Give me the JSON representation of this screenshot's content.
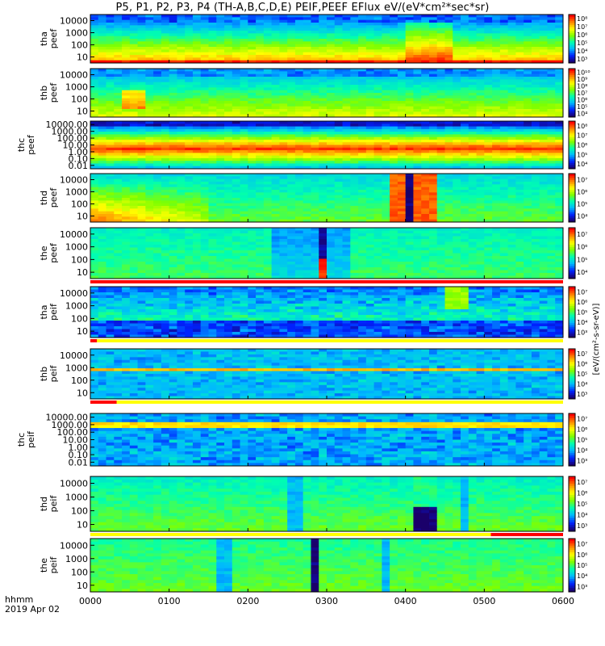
{
  "title": "P5, P1, P2, P3, P4 (TH-A,B,C,D,E) PEIF,PEEF EFlux eV/(eV*cm²*sec*sr)",
  "time_axis": {
    "label": "hhmm",
    "date": "2019 Apr 02",
    "ticks": [
      "0000",
      "0100",
      "0200",
      "0300",
      "0400",
      "0500",
      "0600"
    ]
  },
  "chart_data": {
    "type": "heatmap",
    "title": "P5, P1, P2, P3, P4 (TH-A,B,C,D,E) PEIF,PEEF EFlux eV/(eV*cm²*sec*sr)",
    "xlabel": "hhmm",
    "x_range": [
      "0000",
      "0600"
    ],
    "y_scale": "log",
    "colorbar_label": "[eV/(cm²-s-sr-eV)]",
    "colorbar_scale": "log",
    "panels": [
      {
        "name": "tha peef",
        "probe": "tha",
        "species": "electron",
        "ylabel": [
          "tha",
          "peef"
        ],
        "yticks": [
          "10",
          "100",
          "1000",
          "10000"
        ],
        "cbar_ticks": [
          "10³",
          "10⁴",
          "10⁵",
          "10⁶",
          "10⁷",
          "10⁸"
        ],
        "status_bar": null
      },
      {
        "name": "thb peef",
        "probe": "thb",
        "species": "electron",
        "ylabel": [
          "thb",
          "peef"
        ],
        "yticks": [
          "10",
          "100",
          "1000",
          "10000"
        ],
        "cbar_ticks": [
          "10⁴",
          "10⁵",
          "10⁶",
          "10⁷",
          "10⁸",
          "10⁹",
          "10¹⁰"
        ],
        "status_bar": null
      },
      {
        "name": "thc peef",
        "probe": "thc",
        "species": "electron",
        "ylabel": [
          "thc",
          "peef"
        ],
        "yticks": [
          "0.01",
          "0.10",
          "1.00",
          "10.00",
          "100.00",
          "1000.00",
          "10000.00"
        ],
        "cbar_ticks": [
          "10⁴",
          "10⁵",
          "10⁶",
          "10⁷",
          "10⁸"
        ],
        "status_bar": null
      },
      {
        "name": "thd peef",
        "probe": "thd",
        "species": "electron",
        "ylabel": [
          "thd",
          "peef"
        ],
        "yticks": [
          "10",
          "100",
          "1000",
          "10000"
        ],
        "cbar_ticks": [
          "10⁴",
          "10⁵",
          "10⁶",
          "10⁷"
        ],
        "status_bar": null
      },
      {
        "name": "the peef",
        "probe": "the",
        "species": "electron",
        "ylabel": [
          "the",
          "peef"
        ],
        "yticks": [
          "10",
          "100",
          "1000",
          "10000"
        ],
        "cbar_ticks": [
          "10⁴",
          "10⁵",
          "10⁶",
          "10⁷"
        ],
        "status_bar": {
          "segments": [
            [
              "0000",
              "0600"
            ]
          ]
        }
      },
      {
        "name": "tha peif",
        "probe": "tha",
        "species": "ion",
        "ylabel": [
          "tha",
          "peif"
        ],
        "yticks": [
          "10",
          "100",
          "1000",
          "10000"
        ],
        "cbar_ticks": [
          "10³",
          "10⁴",
          "10⁵",
          "10⁶",
          "10⁷"
        ],
        "status_bar": {
          "segments": [
            [
              "0000",
              "0005"
            ]
          ]
        }
      },
      {
        "name": "thb peif",
        "probe": "thb",
        "species": "ion",
        "ylabel": [
          "thb",
          "peif"
        ],
        "yticks": [
          "10",
          "100",
          "1000",
          "10000"
        ],
        "cbar_ticks": [
          "10³",
          "10⁴",
          "10⁵",
          "10⁶",
          "10⁷"
        ],
        "status_bar": {
          "segments": [
            [
              "0000",
              "0020"
            ]
          ]
        }
      },
      {
        "name": "thc peif",
        "probe": "thc",
        "species": "ion",
        "ylabel": [
          "thc",
          "peif"
        ],
        "yticks": [
          "0.01",
          "0.10",
          "1.00",
          "10.00",
          "100.00",
          "1000.00",
          "10000.00"
        ],
        "cbar_ticks": [
          "10³",
          "10⁴",
          "10⁵",
          "10⁶",
          "10⁷"
        ],
        "status_bar": null
      },
      {
        "name": "thd peif",
        "probe": "thd",
        "species": "ion",
        "ylabel": [
          "thd",
          "peif"
        ],
        "yticks": [
          "10",
          "100",
          "1000",
          "10000"
        ],
        "cbar_ticks": [
          "10³",
          "10⁴",
          "10⁵",
          "10⁶",
          "10⁷"
        ],
        "status_bar": {
          "segments": [
            [
              "0505",
              "0600"
            ]
          ]
        }
      },
      {
        "name": "the peif",
        "probe": "the",
        "species": "ion",
        "ylabel": [
          "the",
          "peif"
        ],
        "yticks": [
          "10",
          "100",
          "1000",
          "10000"
        ],
        "cbar_ticks": [
          "10³",
          "10⁴",
          "10⁵",
          "10⁶",
          "10⁷"
        ],
        "status_bar": null
      }
    ]
  },
  "colorbar_label": "[eV/(cm²-s-sr-eV)]",
  "colors": {
    "colormap": [
      "#1a006a",
      "#0022ff",
      "#00b8ff",
      "#00ffb0",
      "#7fff00",
      "#ffff00",
      "#ff8800",
      "#ff0000"
    ],
    "status_red": "#ff0000",
    "status_yellow": "#ffff00"
  }
}
